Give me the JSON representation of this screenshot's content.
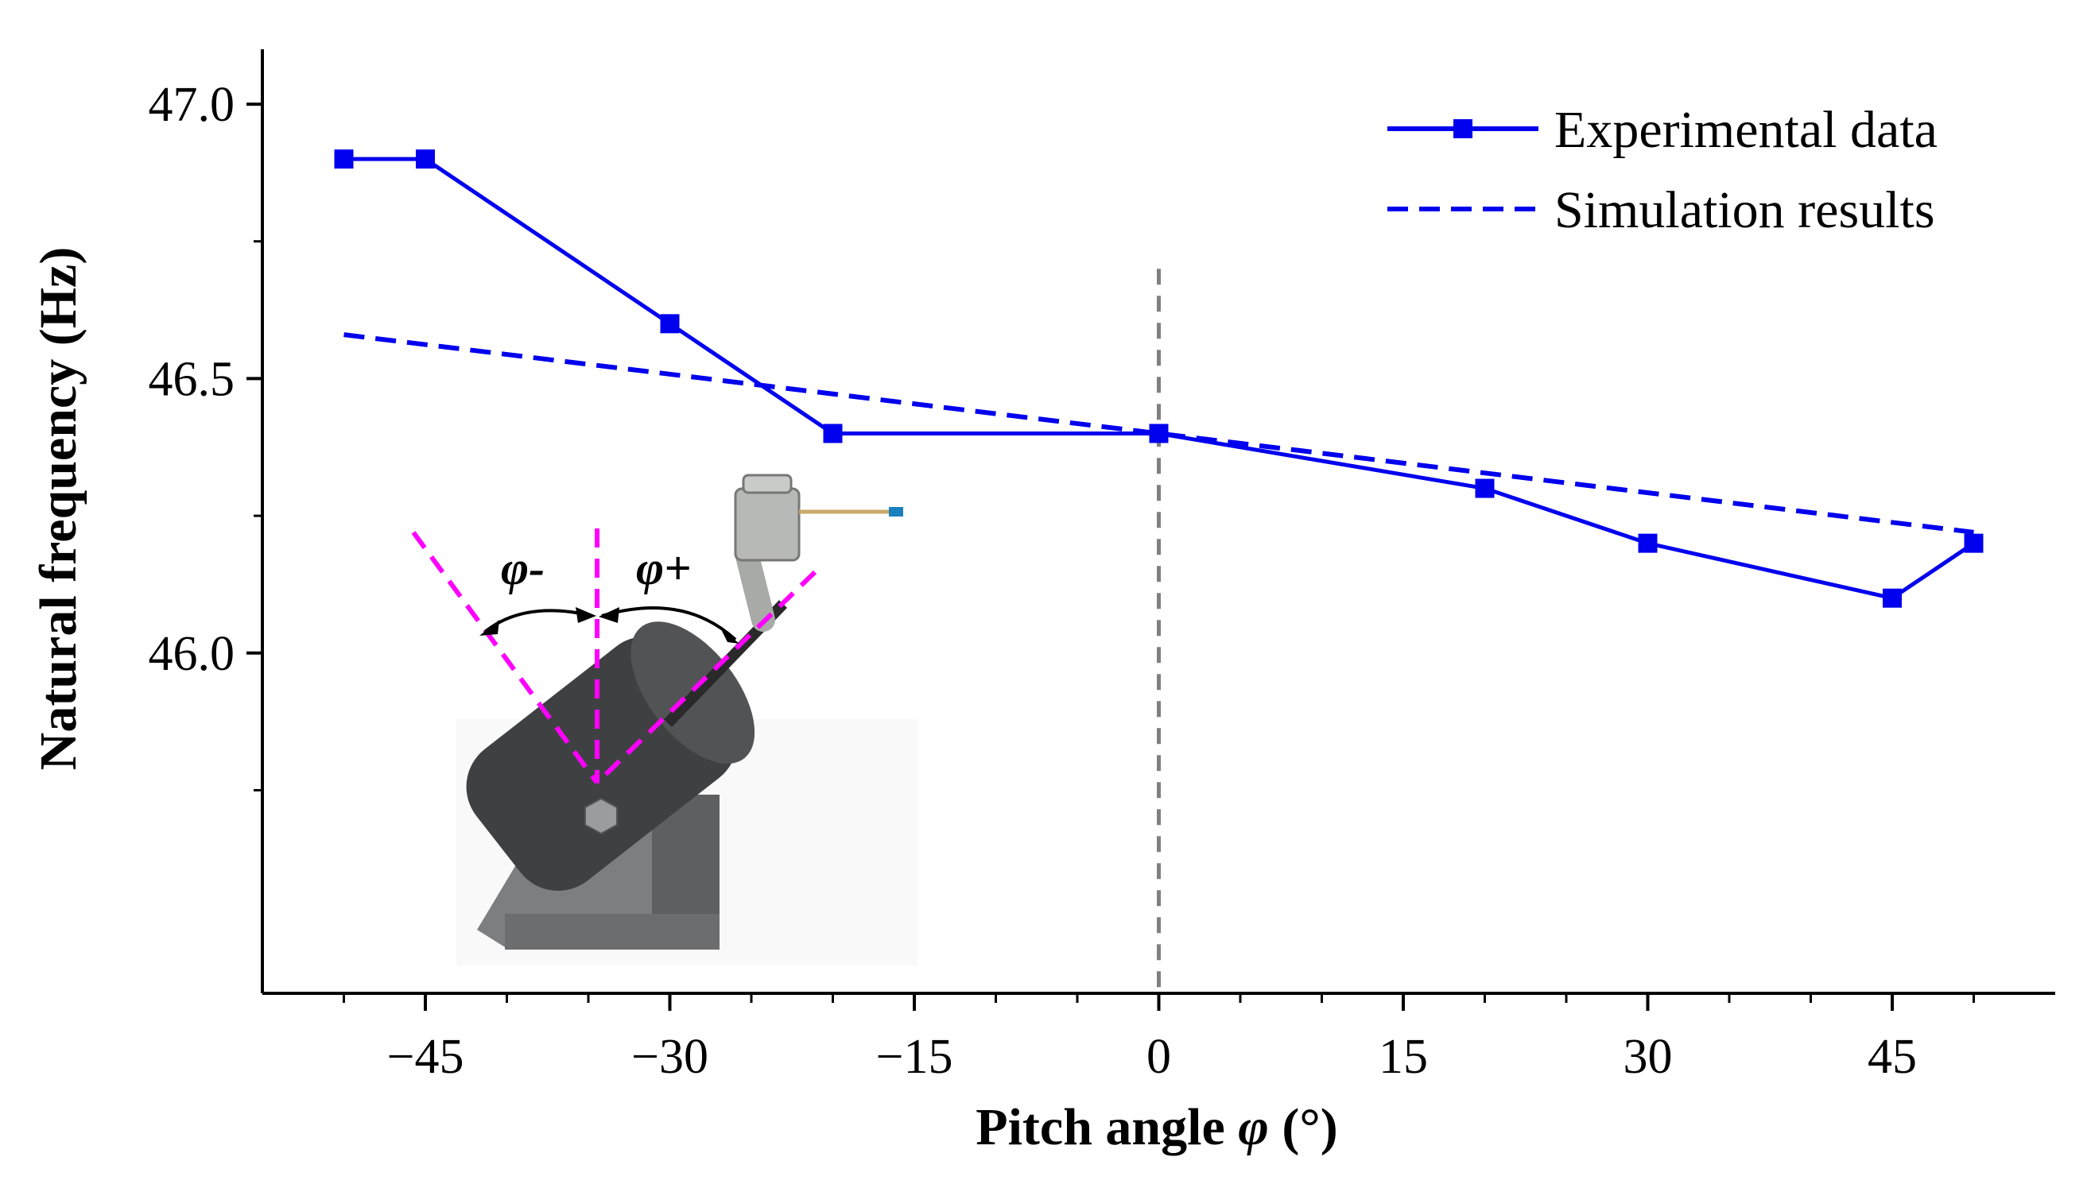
{
  "chart_data": {
    "type": "line",
    "title": "",
    "xlabel_prefix": "Pitch angle ",
    "xlabel_symbol": "φ",
    "xlabel_suffix": " (°)",
    "ylabel": "Natural frequency (Hz)",
    "xlim": [
      -55,
      55
    ],
    "ylim": [
      45.38,
      47.1
    ],
    "x_ticks": [
      -45,
      -30,
      -15,
      0,
      15,
      30,
      45
    ],
    "x_tick_labels": [
      "−45",
      "−30",
      "−15",
      "0",
      "15",
      "30",
      "45"
    ],
    "y_ticks": [
      46.0,
      46.5,
      47.0
    ],
    "y_tick_labels": [
      "46.0",
      "46.5",
      "47.0"
    ],
    "reference_line_x": 0,
    "legend_position": "top-right",
    "series": [
      {
        "name": "Experimental data",
        "style": "solid-square-markers",
        "color": "#0000ee",
        "x": [
          -50,
          -45,
          -30,
          -20,
          0,
          20,
          30,
          45,
          50
        ],
        "y": [
          46.9,
          46.9,
          46.6,
          46.4,
          46.4,
          46.3,
          46.2,
          46.1,
          46.2
        ]
      },
      {
        "name": "Simulation results",
        "style": "dashed",
        "color": "#0000ee",
        "x": [
          -50,
          50
        ],
        "y": [
          46.58,
          46.22
        ]
      }
    ],
    "inset": {
      "label_minus": "φ-",
      "label_plus": "φ+",
      "guide_color": "#ff00ff"
    }
  }
}
